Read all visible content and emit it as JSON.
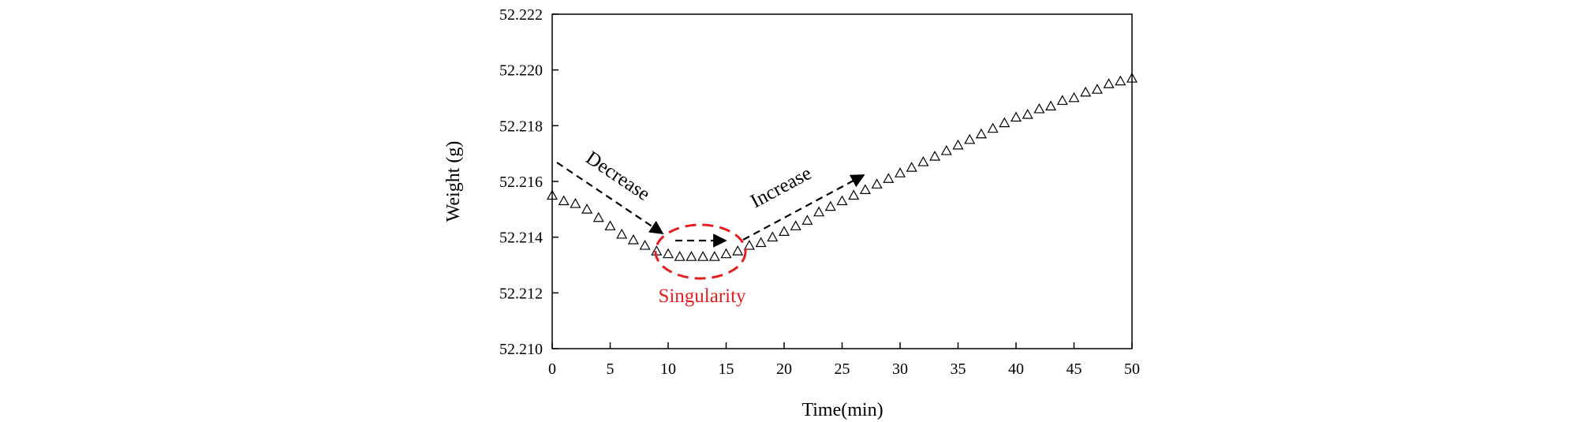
{
  "chart_data": {
    "type": "scatter",
    "title": "",
    "xlabel": "Time(min)",
    "ylabel": "Weight (g)",
    "xlim": [
      0,
      50
    ],
    "ylim": [
      52.21,
      52.222
    ],
    "xticks": [
      0,
      5,
      10,
      15,
      20,
      25,
      30,
      35,
      40,
      45,
      50
    ],
    "yticks": [
      52.21,
      52.212,
      52.214,
      52.216,
      52.218,
      52.22,
      52.222
    ],
    "xtick_labels": [
      "0",
      "5",
      "10",
      "15",
      "20",
      "25",
      "30",
      "35",
      "40",
      "45",
      "50"
    ],
    "ytick_labels": [
      "52.210",
      "52.212",
      "52.214",
      "52.216",
      "52.218",
      "52.220",
      "52.222"
    ],
    "grid": false,
    "marker": "triangle-open",
    "marker_color": "#000000",
    "series": [
      {
        "name": "",
        "x": [
          0,
          1,
          2,
          3,
          4,
          5,
          6,
          7,
          8,
          9,
          10,
          11,
          12,
          13,
          14,
          15,
          16,
          17,
          18,
          19,
          20,
          21,
          22,
          23,
          24,
          25,
          26,
          27,
          28,
          29,
          30,
          31,
          32,
          33,
          34,
          35,
          36,
          37,
          38,
          39,
          40,
          41,
          42,
          43,
          44,
          45,
          46,
          47,
          48,
          49,
          50
        ],
        "y": [
          52.2155,
          52.2153,
          52.2152,
          52.215,
          52.2147,
          52.2144,
          52.2141,
          52.2139,
          52.2137,
          52.2135,
          52.2134,
          52.2133,
          52.2133,
          52.2133,
          52.2133,
          52.2134,
          52.2135,
          52.2137,
          52.2138,
          52.214,
          52.2142,
          52.2144,
          52.2146,
          52.2149,
          52.2151,
          52.2153,
          52.2155,
          52.2157,
          52.2159,
          52.2161,
          52.2163,
          52.2165,
          52.2167,
          52.2169,
          52.2171,
          52.2173,
          52.2175,
          52.2177,
          52.2179,
          52.2181,
          52.2183,
          52.2184,
          52.2186,
          52.2187,
          52.2189,
          52.219,
          52.2192,
          52.2193,
          52.2195,
          52.2196,
          52.2197
        ]
      }
    ],
    "annotations": [
      {
        "text": "Decrease",
        "color": "#000000",
        "arrow": "dashed"
      },
      {
        "text": "Increase",
        "color": "#000000",
        "arrow": "dashed"
      },
      {
        "text": "Singularity",
        "color": "#e41e1e",
        "shape": "dashed-ellipse"
      }
    ]
  }
}
